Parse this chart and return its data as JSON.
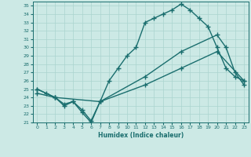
{
  "xlabel": "Humidex (Indice chaleur)",
  "xlim": [
    -0.5,
    23.5
  ],
  "ylim": [
    21,
    35.5
  ],
  "xticks": [
    0,
    1,
    2,
    3,
    4,
    5,
    6,
    7,
    8,
    9,
    10,
    11,
    12,
    13,
    14,
    15,
    16,
    17,
    18,
    19,
    20,
    21,
    22,
    23
  ],
  "yticks": [
    21,
    22,
    23,
    24,
    25,
    26,
    27,
    28,
    29,
    30,
    31,
    32,
    33,
    34,
    35
  ],
  "bg_color": "#cce9e5",
  "grid_color": "#aad4cf",
  "line_color": "#1a6e6e",
  "line_width": 1.0,
  "marker": "+",
  "marker_size": 4,
  "lines": [
    {
      "x": [
        0,
        1,
        2,
        3,
        4,
        5,
        6,
        7,
        8,
        9,
        10,
        11,
        12,
        13,
        14,
        15,
        16,
        17,
        18,
        19,
        20,
        21,
        22,
        23
      ],
      "y": [
        25,
        24.5,
        24,
        23.2,
        23.5,
        22.5,
        21.2,
        23.5,
        26,
        27.5,
        29,
        30,
        33,
        33.5,
        34,
        34.5,
        35.2,
        34.5,
        33.5,
        32.5,
        30,
        27.5,
        26.5,
        26
      ]
    },
    {
      "x": [
        0,
        2,
        7,
        12,
        16,
        20,
        23
      ],
      "y": [
        24.5,
        24.0,
        23.5,
        25.5,
        27.5,
        29.5,
        26.0
      ]
    },
    {
      "x": [
        0,
        2,
        3,
        4,
        5,
        6,
        7,
        12,
        16,
        20,
        21,
        22,
        23
      ],
      "y": [
        25,
        24.0,
        23.0,
        23.5,
        22.2,
        21.0,
        23.5,
        26.5,
        29.5,
        31.5,
        30.0,
        27.0,
        25.5
      ]
    }
  ]
}
